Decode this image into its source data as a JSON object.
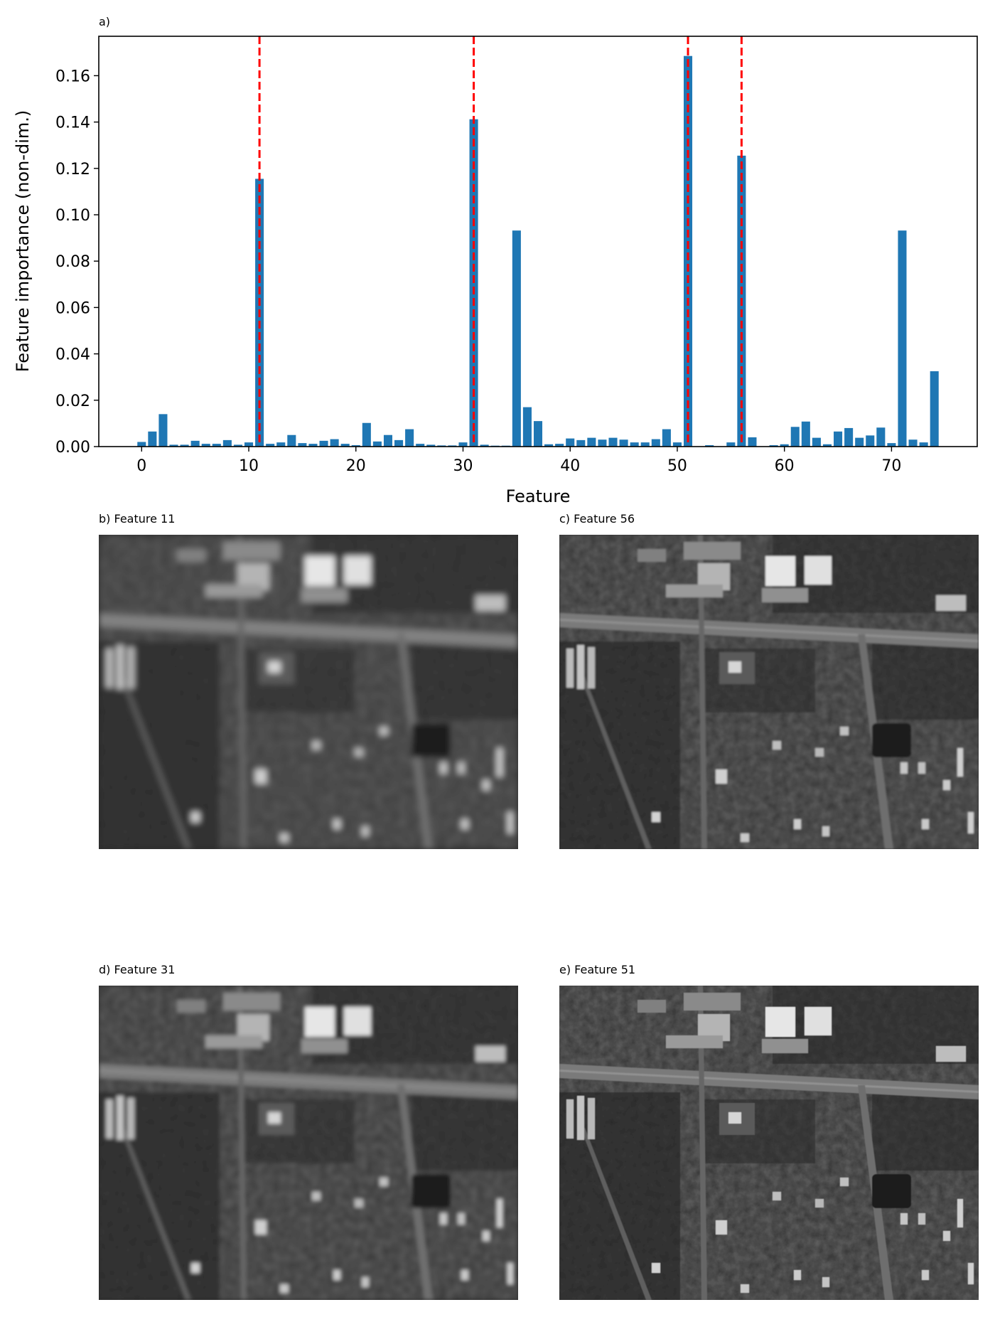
{
  "chart_data": {
    "type": "bar",
    "panel_label": "a)",
    "xlabel": "Feature",
    "ylabel": "Feature importance (non-dim.)",
    "xlim": [
      -4,
      78
    ],
    "ylim": [
      0,
      0.177
    ],
    "xticks": [
      0,
      10,
      20,
      30,
      40,
      50,
      60,
      70
    ],
    "yticks": [
      0.0,
      0.02,
      0.04,
      0.06,
      0.08,
      0.1,
      0.12,
      0.14,
      0.16
    ],
    "bar_color": "#1f77b4",
    "highlight_color": "#ff0000",
    "highlighted_features": [
      11,
      31,
      51,
      56
    ],
    "x": [
      0,
      1,
      2,
      3,
      4,
      5,
      6,
      7,
      8,
      9,
      10,
      11,
      12,
      13,
      14,
      15,
      16,
      17,
      18,
      19,
      20,
      21,
      22,
      23,
      24,
      25,
      26,
      27,
      28,
      29,
      30,
      31,
      32,
      33,
      34,
      35,
      36,
      37,
      38,
      39,
      40,
      41,
      42,
      43,
      44,
      45,
      46,
      47,
      48,
      49,
      50,
      51,
      52,
      53,
      54,
      55,
      56,
      57,
      58,
      59,
      60,
      61,
      62,
      63,
      64,
      65,
      66,
      67,
      68,
      69,
      70,
      71,
      72,
      73,
      74
    ],
    "values": [
      0.002,
      0.0065,
      0.014,
      0.0008,
      0.0008,
      0.0025,
      0.0012,
      0.0012,
      0.0028,
      0.0008,
      0.0018,
      0.1155,
      0.0012,
      0.0018,
      0.005,
      0.0015,
      0.0012,
      0.0025,
      0.0032,
      0.0012,
      0.0006,
      0.0102,
      0.0022,
      0.005,
      0.0028,
      0.0075,
      0.0012,
      0.0008,
      0.0005,
      0.0005,
      0.0018,
      0.1412,
      0.0008,
      0.0004,
      0.0004,
      0.0932,
      0.017,
      0.011,
      0.001,
      0.0012,
      0.0035,
      0.0028,
      0.0038,
      0.003,
      0.0038,
      0.003,
      0.0018,
      0.0018,
      0.0032,
      0.0075,
      0.0018,
      0.1685,
      0.0,
      0.0006,
      0.0,
      0.0018,
      0.1255,
      0.004,
      0.0,
      0.0006,
      0.001,
      0.0085,
      0.0108,
      0.0038,
      0.001,
      0.0065,
      0.008,
      0.0038,
      0.0048,
      0.0082,
      0.0015,
      0.0932,
      0.003,
      0.0018,
      0.0325
    ]
  },
  "image_panels": [
    {
      "label": "b) Feature 11",
      "blur": 4.2
    },
    {
      "label": "c) Feature 56",
      "blur": 1.2
    },
    {
      "label": "d) Feature 31",
      "blur": 2.6
    },
    {
      "label": "e) Feature 51",
      "blur": 0.5
    }
  ]
}
